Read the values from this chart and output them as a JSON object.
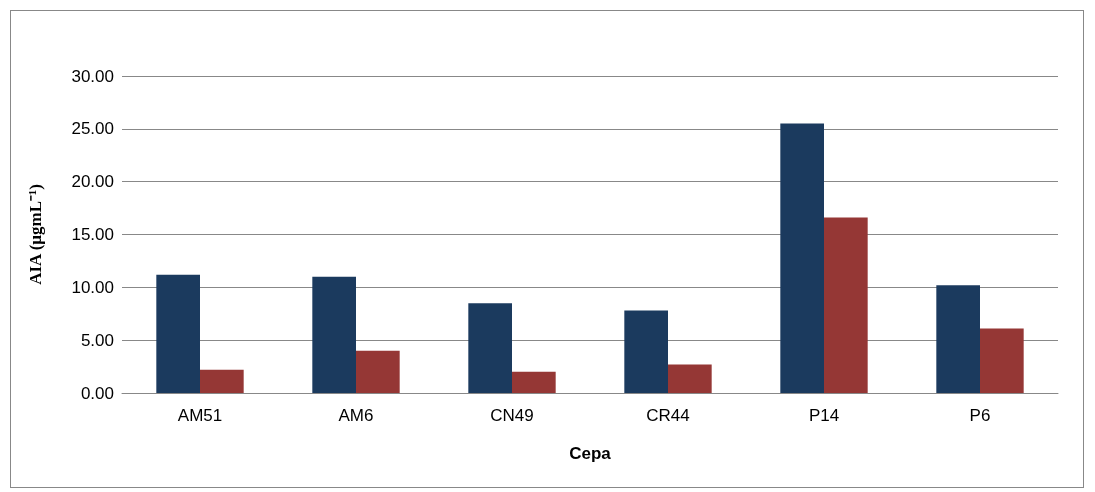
{
  "chart_data": {
    "type": "bar",
    "xlabel": "Cepa",
    "ylabel": "AIA (µgmL⁻¹)",
    "categories": [
      "AM51",
      "AM6",
      "CN49",
      "CR44",
      "P14",
      "P6"
    ],
    "series": [
      {
        "color": "#1b3a5e",
        "values": [
          11.2,
          11.0,
          8.5,
          7.8,
          25.5,
          10.2
        ]
      },
      {
        "color": "#953735",
        "values": [
          2.2,
          4.0,
          2.0,
          2.7,
          16.6,
          6.1
        ]
      }
    ],
    "ylim": [
      0,
      30
    ],
    "yticks": [
      {
        "value": 0,
        "label": "0.00"
      },
      {
        "value": 5,
        "label": "5.00"
      },
      {
        "value": 10,
        "label": "10.00"
      },
      {
        "value": 15,
        "label": "15.00"
      },
      {
        "value": 20,
        "label": "20.00"
      },
      {
        "value": 25,
        "label": "25.00"
      },
      {
        "value": 30,
        "label": "30.00"
      }
    ],
    "grid": "y"
  }
}
